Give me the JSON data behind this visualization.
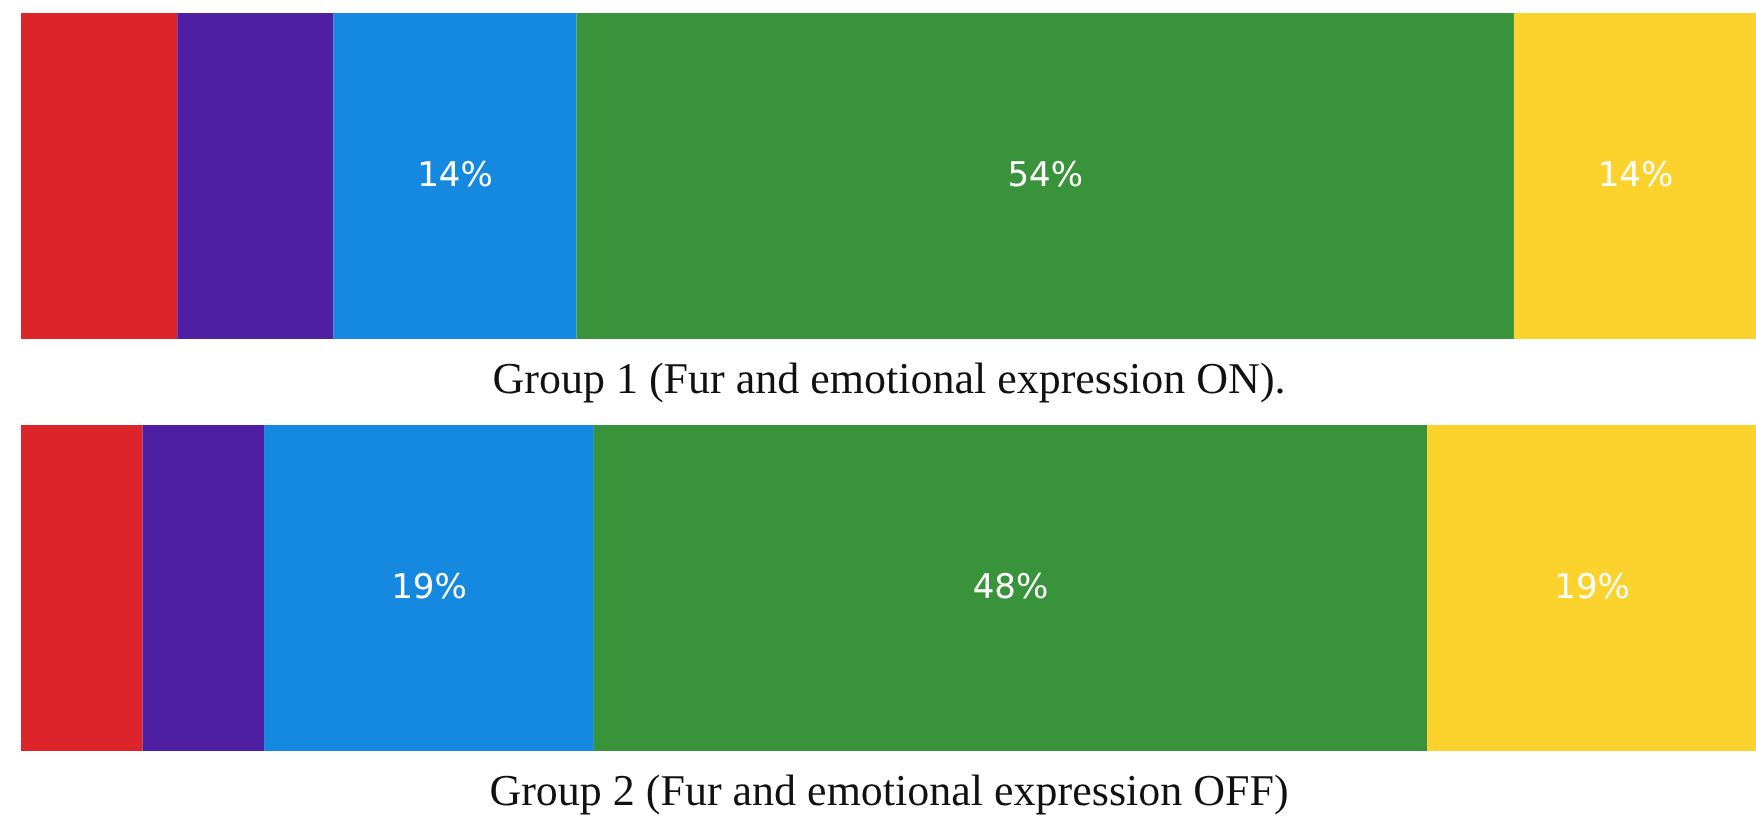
{
  "chart_data": [
    {
      "type": "bar",
      "title": "Group 1 (Fur and emotional expression ON).",
      "orientation": "horizontal",
      "stacked": true,
      "categories": [
        null
      ],
      "xlim": [
        0,
        100
      ],
      "tick_labels": false,
      "series": [
        {
          "color": "#dd242b",
          "values": [
            9
          ],
          "value_labels": [
            null
          ]
        },
        {
          "color": "#4f1fa3",
          "values": [
            9
          ],
          "value_labels": [
            null
          ]
        },
        {
          "color": "#1588e0",
          "values": [
            14
          ],
          "value_labels": [
            "14%"
          ]
        },
        {
          "color": "#38933a",
          "values": [
            54
          ],
          "value_labels": [
            "54%"
          ]
        },
        {
          "color": "#fcd22d",
          "values": [
            14
          ],
          "value_labels": [
            "14%"
          ]
        }
      ]
    },
    {
      "type": "bar",
      "title": "Group 2 (Fur and emotional expression OFF)",
      "orientation": "horizontal",
      "stacked": true,
      "categories": [
        null
      ],
      "xlim": [
        0,
        100
      ],
      "tick_labels": false,
      "series": [
        {
          "color": "#dd242b",
          "values": [
            7
          ],
          "value_labels": [
            null
          ]
        },
        {
          "color": "#4f1fa3",
          "values": [
            7
          ],
          "value_labels": [
            null
          ]
        },
        {
          "color": "#1588e0",
          "values": [
            19
          ],
          "value_labels": [
            "19%"
          ]
        },
        {
          "color": "#38933a",
          "values": [
            48
          ],
          "value_labels": [
            "48%"
          ]
        },
        {
          "color": "#fcd22d",
          "values": [
            19
          ],
          "value_labels": [
            "19%"
          ]
        }
      ]
    }
  ]
}
